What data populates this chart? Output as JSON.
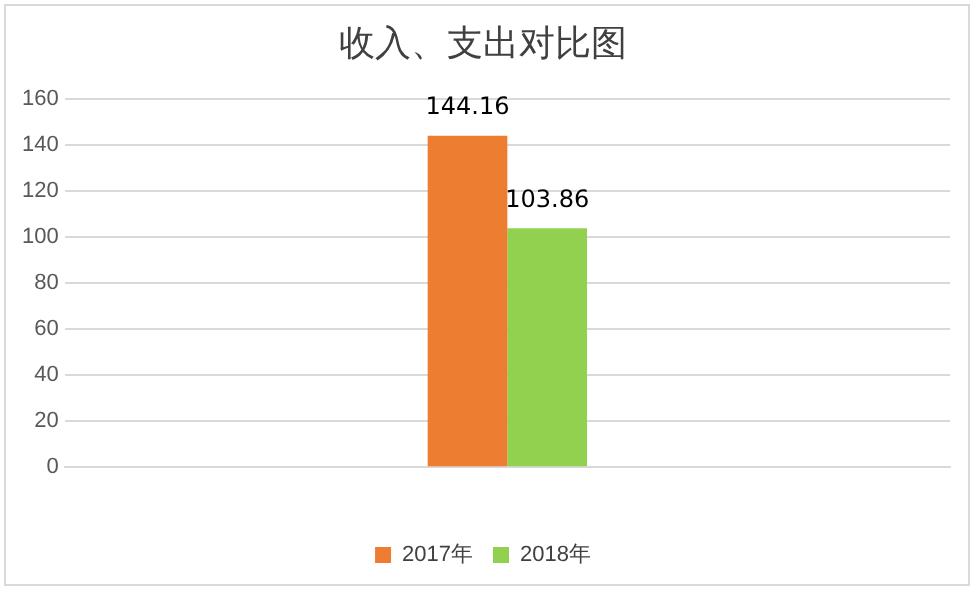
{
  "chart_data": {
    "type": "bar",
    "title": "收入、支出对比图",
    "categories": [
      null
    ],
    "series": [
      {
        "name": "2017年",
        "color": "#ed7d31",
        "values": [
          144.16
        ]
      },
      {
        "name": "2018年",
        "color": "#92d050",
        "values": [
          103.86
        ]
      }
    ],
    "ylim": [
      0,
      160
    ],
    "yticks": [
      0,
      20,
      40,
      60,
      80,
      100,
      120,
      140,
      160
    ],
    "grid": "y",
    "legend": "bottom",
    "data_labels": true
  }
}
